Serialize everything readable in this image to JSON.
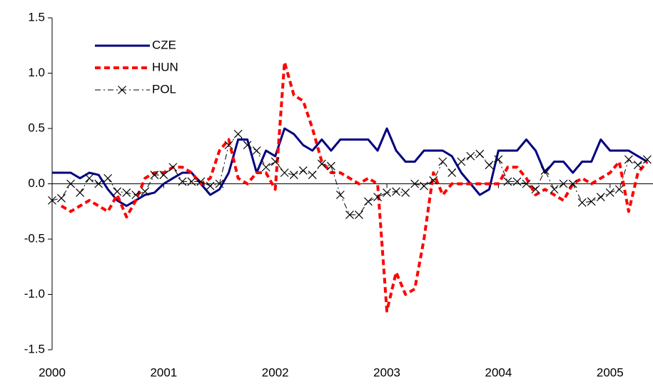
{
  "chart_data": {
    "type": "line",
    "x": [
      2000,
      2000.083,
      2000.167,
      2000.25,
      2000.333,
      2000.417,
      2000.5,
      2000.583,
      2000.667,
      2000.75,
      2000.833,
      2000.917,
      2001,
      2001.083,
      2001.167,
      2001.25,
      2001.333,
      2001.417,
      2001.5,
      2001.583,
      2001.667,
      2001.75,
      2001.833,
      2001.917,
      2002,
      2002.083,
      2002.167,
      2002.25,
      2002.333,
      2002.417,
      2002.5,
      2002.583,
      2002.667,
      2002.75,
      2002.833,
      2002.917,
      2003,
      2003.083,
      2003.167,
      2003.25,
      2003.333,
      2003.417,
      2003.5,
      2003.583,
      2003.667,
      2003.75,
      2003.833,
      2003.917,
      2004,
      2004.083,
      2004.167,
      2004.25,
      2004.333,
      2004.417,
      2004.5,
      2004.583,
      2004.667,
      2004.75,
      2004.833,
      2004.917,
      2005,
      2005.083,
      2005.167,
      2005.25,
      2005.333
    ],
    "series": [
      {
        "name": "CZE",
        "color": "#000080",
        "style": "solid",
        "values": [
          0.1,
          0.1,
          0.1,
          0.05,
          0.1,
          0.08,
          -0.05,
          -0.15,
          -0.2,
          -0.15,
          -0.1,
          -0.08,
          0.0,
          0.05,
          0.1,
          0.1,
          0.0,
          -0.1,
          -0.05,
          0.1,
          0.4,
          0.4,
          0.1,
          0.3,
          0.25,
          0.5,
          0.45,
          0.35,
          0.3,
          0.4,
          0.3,
          0.4,
          0.4,
          0.4,
          0.4,
          0.3,
          0.5,
          0.3,
          0.2,
          0.2,
          0.3,
          0.3,
          0.3,
          0.25,
          0.1,
          0.0,
          -0.1,
          -0.05,
          0.3,
          0.3,
          0.3,
          0.4,
          0.3,
          0.1,
          0.2,
          0.2,
          0.1,
          0.2,
          0.2,
          0.4,
          0.3,
          0.3,
          0.3,
          0.25,
          0.2
        ]
      },
      {
        "name": "HUN",
        "color": "#ff0000",
        "style": "dashed",
        "values": [
          null,
          -0.2,
          -0.25,
          -0.2,
          -0.15,
          -0.2,
          -0.25,
          -0.1,
          -0.3,
          -0.15,
          0.05,
          0.1,
          0.1,
          0.15,
          0.15,
          0.1,
          0.0,
          0.05,
          0.3,
          0.4,
          0.05,
          0.0,
          0.1,
          0.1,
          -0.05,
          1.1,
          0.8,
          0.75,
          0.5,
          0.2,
          0.1,
          0.1,
          0.05,
          0.0,
          0.05,
          0.0,
          -1.15,
          -0.8,
          -1.0,
          -0.95,
          -0.5,
          0.1,
          -0.1,
          0.0,
          0.0,
          0.0,
          0.0,
          0.0,
          0.0,
          0.15,
          0.15,
          0.05,
          -0.1,
          -0.05,
          -0.1,
          -0.15,
          0.0,
          0.05,
          0.0,
          0.05,
          0.1,
          0.2,
          -0.25,
          0.1,
          0.2
        ]
      },
      {
        "name": "POL",
        "color": "#000000",
        "style": "dashdot",
        "marker": "x",
        "values": [
          -0.15,
          -0.13,
          0.0,
          -0.08,
          0.05,
          0.0,
          0.05,
          -0.07,
          -0.08,
          -0.1,
          -0.07,
          0.08,
          0.08,
          0.15,
          0.02,
          0.02,
          0.02,
          -0.02,
          0.0,
          0.35,
          0.45,
          0.35,
          0.3,
          0.15,
          0.2,
          0.1,
          0.08,
          0.12,
          0.08,
          0.18,
          0.16,
          -0.1,
          -0.28,
          -0.28,
          -0.16,
          -0.12,
          -0.08,
          -0.07,
          -0.08,
          0.0,
          -0.02,
          0.03,
          0.2,
          0.1,
          0.2,
          0.25,
          0.27,
          0.17,
          0.22,
          0.02,
          0.02,
          0.0,
          -0.05,
          0.12,
          -0.05,
          0.0,
          0.0,
          -0.17,
          -0.16,
          -0.12,
          -0.08,
          -0.05,
          0.22,
          0.17,
          0.22
        ]
      }
    ],
    "xlim": [
      2000,
      2005.385
    ],
    "xticks": [
      2000,
      2001,
      2002,
      2003,
      2004,
      2005
    ],
    "ylim": [
      -1.5,
      1.5
    ],
    "yticks": [
      -1.5,
      {
        "value": -1,
        "label": "-1.0"
      },
      -0.5,
      {
        "value": 0,
        "label": "0.0"
      },
      0.5,
      {
        "value": 1,
        "label": "1.0"
      },
      1.5
    ],
    "legend": "upper-left"
  }
}
